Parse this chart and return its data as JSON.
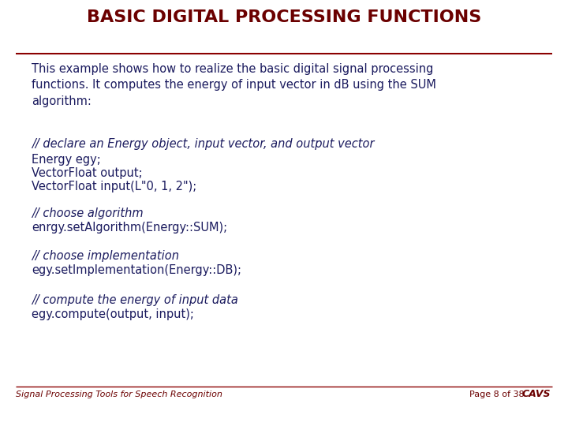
{
  "title": "BASIC DIGITAL PROCESSING FUNCTIONS",
  "title_color": "#6b0000",
  "title_fontsize": 16,
  "line_color": "#8b0000",
  "body_text_color": "#1a1a5e",
  "body_fontsize": 10.5,
  "code_fontsize": 10.5,
  "background_color": "#ffffff",
  "footer_left": "Signal Processing Tools for Speech Recognition",
  "footer_right": "Page 8 of 38",
  "footer_color": "#6b0000",
  "footer_fontsize": 8,
  "paragraph1": "This example shows how to realize the basic digital signal processing\nfunctions. It computes the energy of input vector in dB using the SUM\nalgorithm:",
  "comment1": "// declare an Energy object, input vector, and output vector",
  "code1_line1": "Energy egy;",
  "code1_line2": "VectorFloat output;",
  "code1_line3": "VectorFloat input(L\"0, 1, 2\");",
  "comment2": "// choose algorithm",
  "code2": "enrgy.setAlgorithm(Energy::SUM);",
  "comment3": "// choose implementation",
  "code3": "egy.setImplementation(Energy::DB);",
  "comment4": "// compute the energy of input data",
  "code4": "egy.compute(output, input);"
}
